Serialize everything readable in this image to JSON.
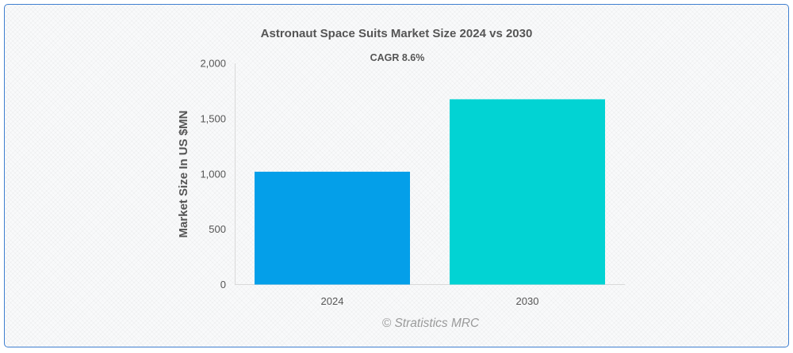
{
  "chart_data": {
    "type": "bar",
    "title": "Astronaut Space Suits Market Size 2024 vs 2030",
    "subtitle": "CAGR 8.6%",
    "xlabel": "",
    "ylabel": "Market Size In US $MN",
    "categories": [
      "2024",
      "2030"
    ],
    "values": [
      1020,
      1675
    ],
    "colors": [
      "#049fe9",
      "#02d3d3"
    ],
    "ylim": [
      0,
      2000
    ],
    "yticks": [
      0,
      500,
      1000,
      1500,
      2000
    ],
    "ytick_labels": [
      "0",
      "500",
      "1,000",
      "1,500",
      "2,000"
    ],
    "grid": false,
    "legend": "none"
  },
  "credit": "© Stratistics MRC"
}
